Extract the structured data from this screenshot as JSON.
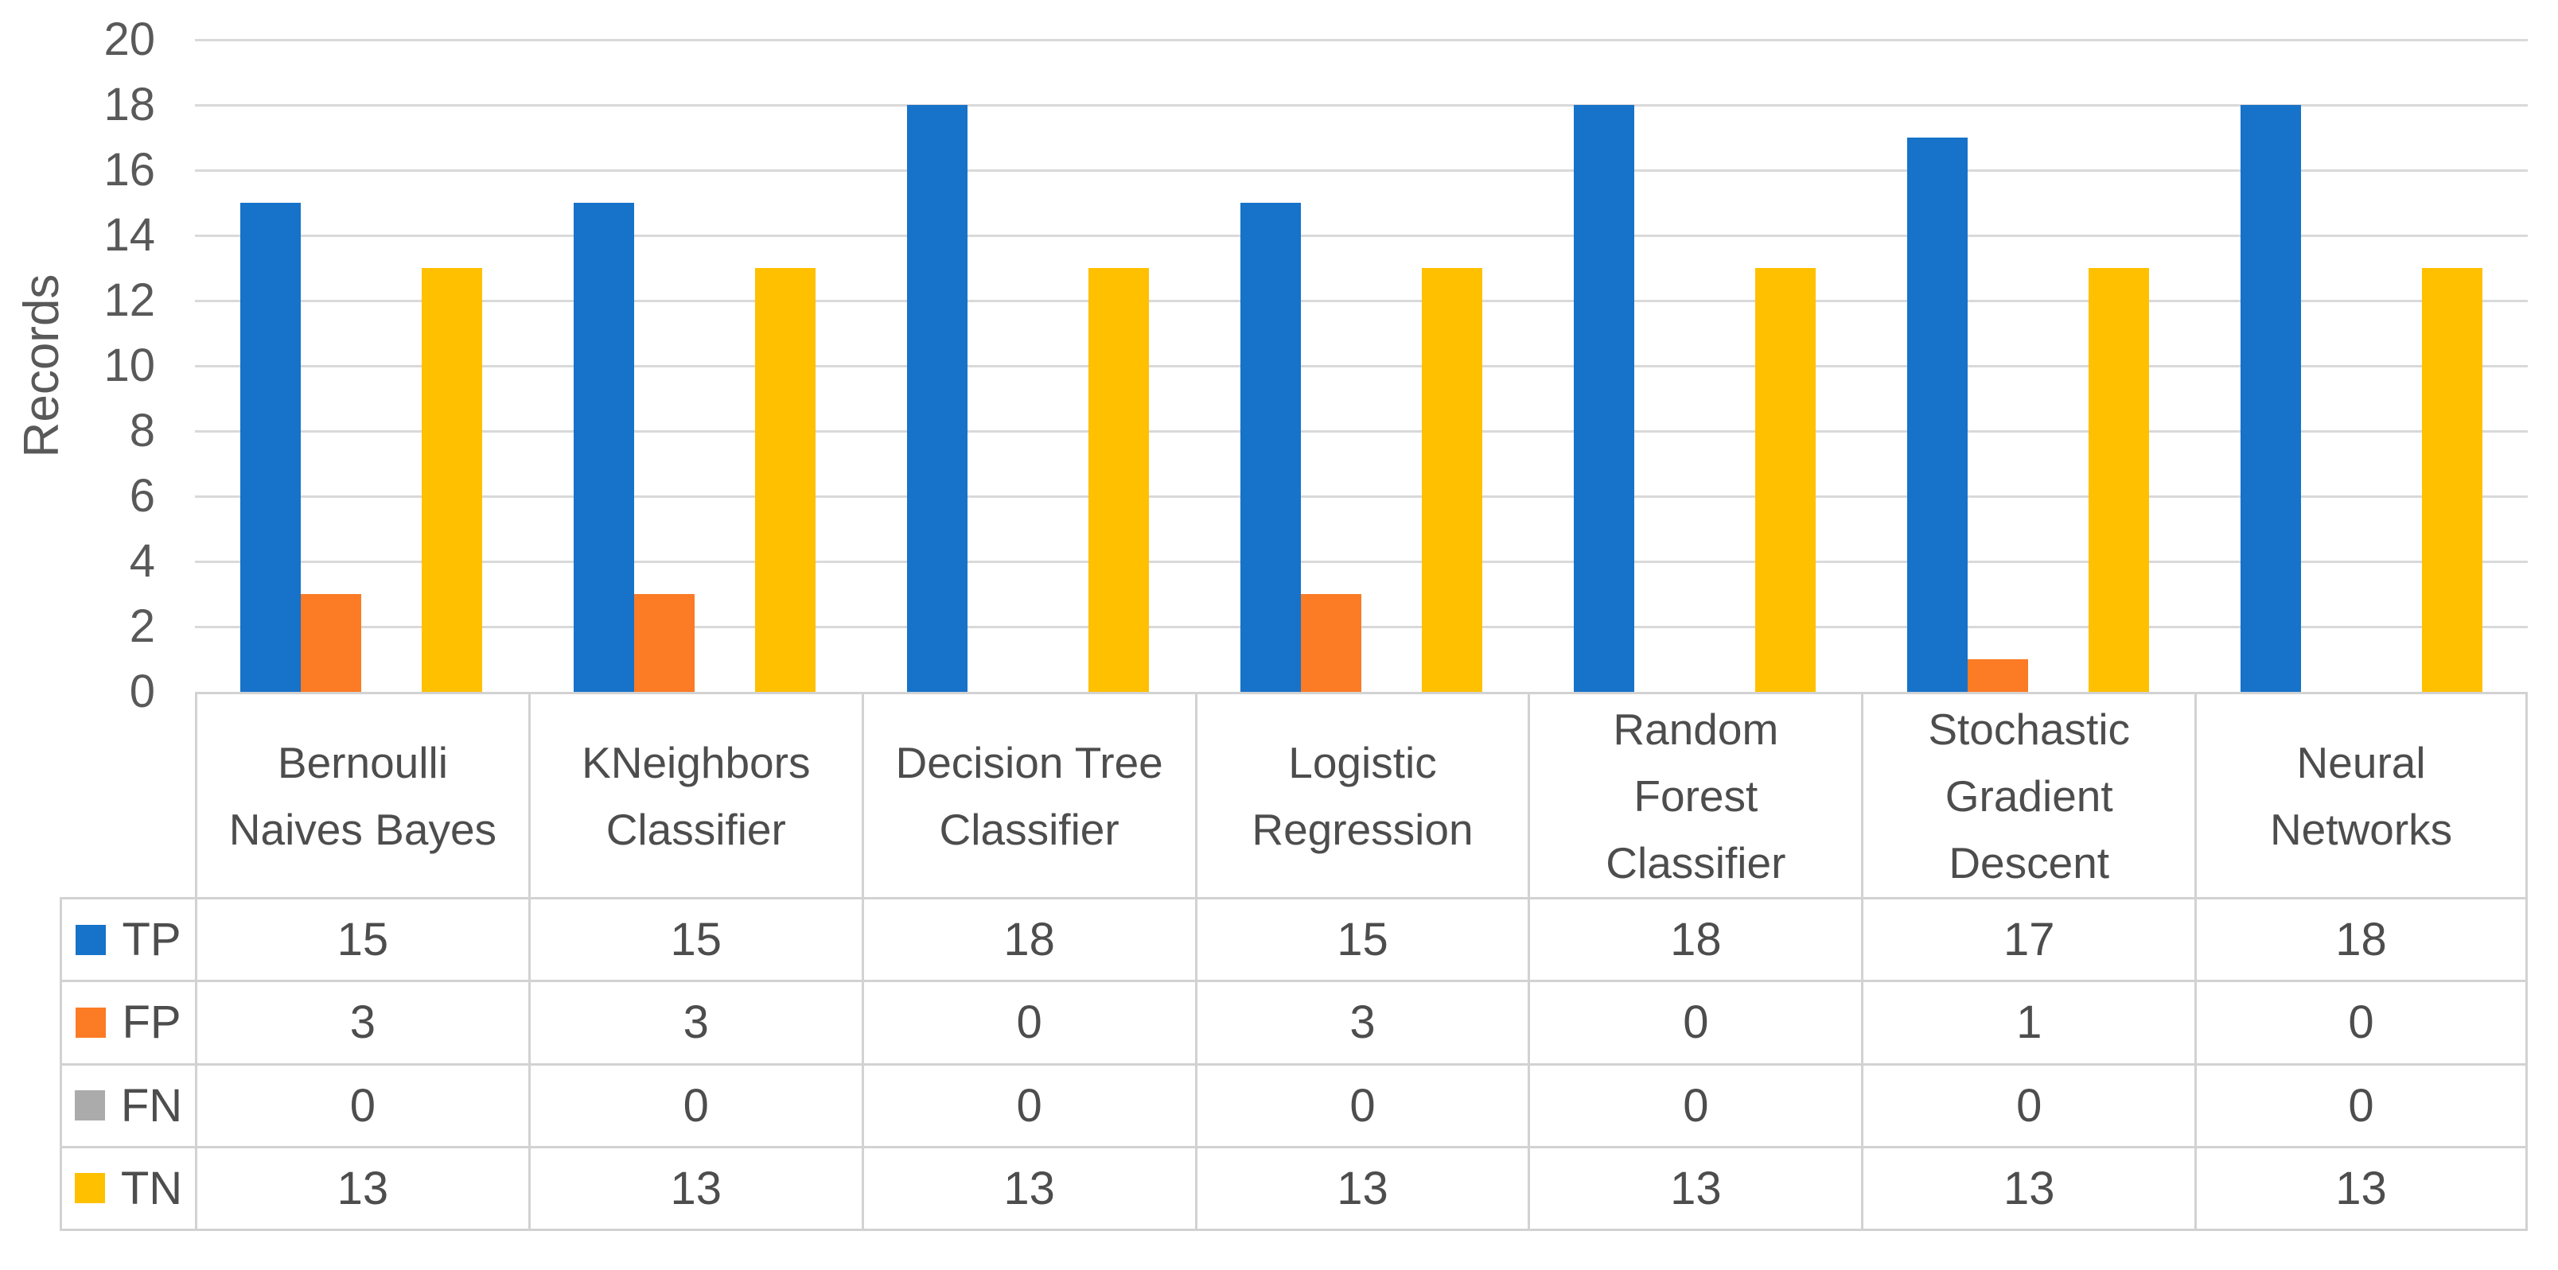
{
  "chart_data": {
    "type": "bar",
    "title": "",
    "ylabel": "Records",
    "ylim": [
      0,
      20
    ],
    "ytick_step": 2,
    "yticks": [
      0,
      2,
      4,
      6,
      8,
      10,
      12,
      14,
      16,
      18,
      20
    ],
    "categories": [
      "Bernoulli Naives Bayes",
      "KNeighbors Classifier",
      "Decision Tree Classifier",
      "Logistic Regression",
      "Random Forest Classifier",
      "Stochastic Gradient Descent",
      "Neural Networks"
    ],
    "category_label_lines": [
      [
        "Bernoulli",
        "Naives Bayes"
      ],
      [
        "KNeighbors",
        "Classifier"
      ],
      [
        "Decision Tree",
        "Classifier"
      ],
      [
        "Logistic",
        "Regression"
      ],
      [
        "Random",
        "Forest",
        "Classifier"
      ],
      [
        "Stochastic",
        "Gradient",
        "Descent"
      ],
      [
        "Neural",
        "Networks"
      ]
    ],
    "series": [
      {
        "name": "TP",
        "color": "#1772C9",
        "values": [
          15,
          15,
          18,
          15,
          18,
          17,
          18
        ]
      },
      {
        "name": "FP",
        "color": "#FC7B25",
        "values": [
          3,
          3,
          0,
          3,
          0,
          1,
          0
        ]
      },
      {
        "name": "FN",
        "color": "#ABABAB",
        "values": [
          0,
          0,
          0,
          0,
          0,
          0,
          0
        ]
      },
      {
        "name": "TN",
        "color": "#FFC000",
        "values": [
          13,
          13,
          13,
          13,
          13,
          13,
          13
        ]
      }
    ],
    "grid": true,
    "legend_position": "data-table-left",
    "show_data_table": true
  },
  "style": {
    "grid_color": "#D9D9D9",
    "table_border_color": "#D2D2D2",
    "axis_text_color": "#595959",
    "table_text_color": "#4D4D4D",
    "background": "#FFFFFF"
  }
}
